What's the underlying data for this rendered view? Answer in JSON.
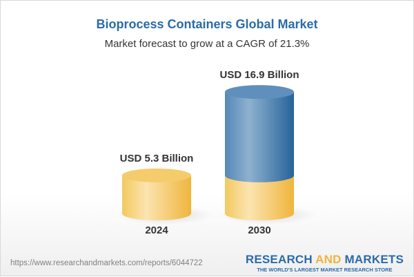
{
  "header": {
    "title": "Bioprocess Containers Global Market",
    "subtitle": "Market forecast to grow at a CAGR of 21.3%"
  },
  "chart_data": {
    "type": "bar",
    "style": "3d-cylinder",
    "categories": [
      "2024",
      "2030"
    ],
    "values": [
      5.3,
      16.9
    ],
    "unit": "USD Billion",
    "data_labels": [
      "USD 5.3 Billion",
      "USD 16.9 Billion"
    ],
    "title": "Bioprocess Containers Global Market",
    "subtitle": "Market forecast to grow at a CAGR of 21.3%",
    "grid": false,
    "colors": {
      "base": "#f2c35a",
      "growth": "#3e79ad"
    }
  },
  "footer": {
    "url": "https://www.researchandmarkets.com/reports/6044722",
    "logo_part1": "RESEARCH ",
    "logo_part2": "AND",
    "logo_part3": " MARKETS",
    "tagline": "THE WORLD'S LARGEST MARKET RESEARCH STORE"
  }
}
